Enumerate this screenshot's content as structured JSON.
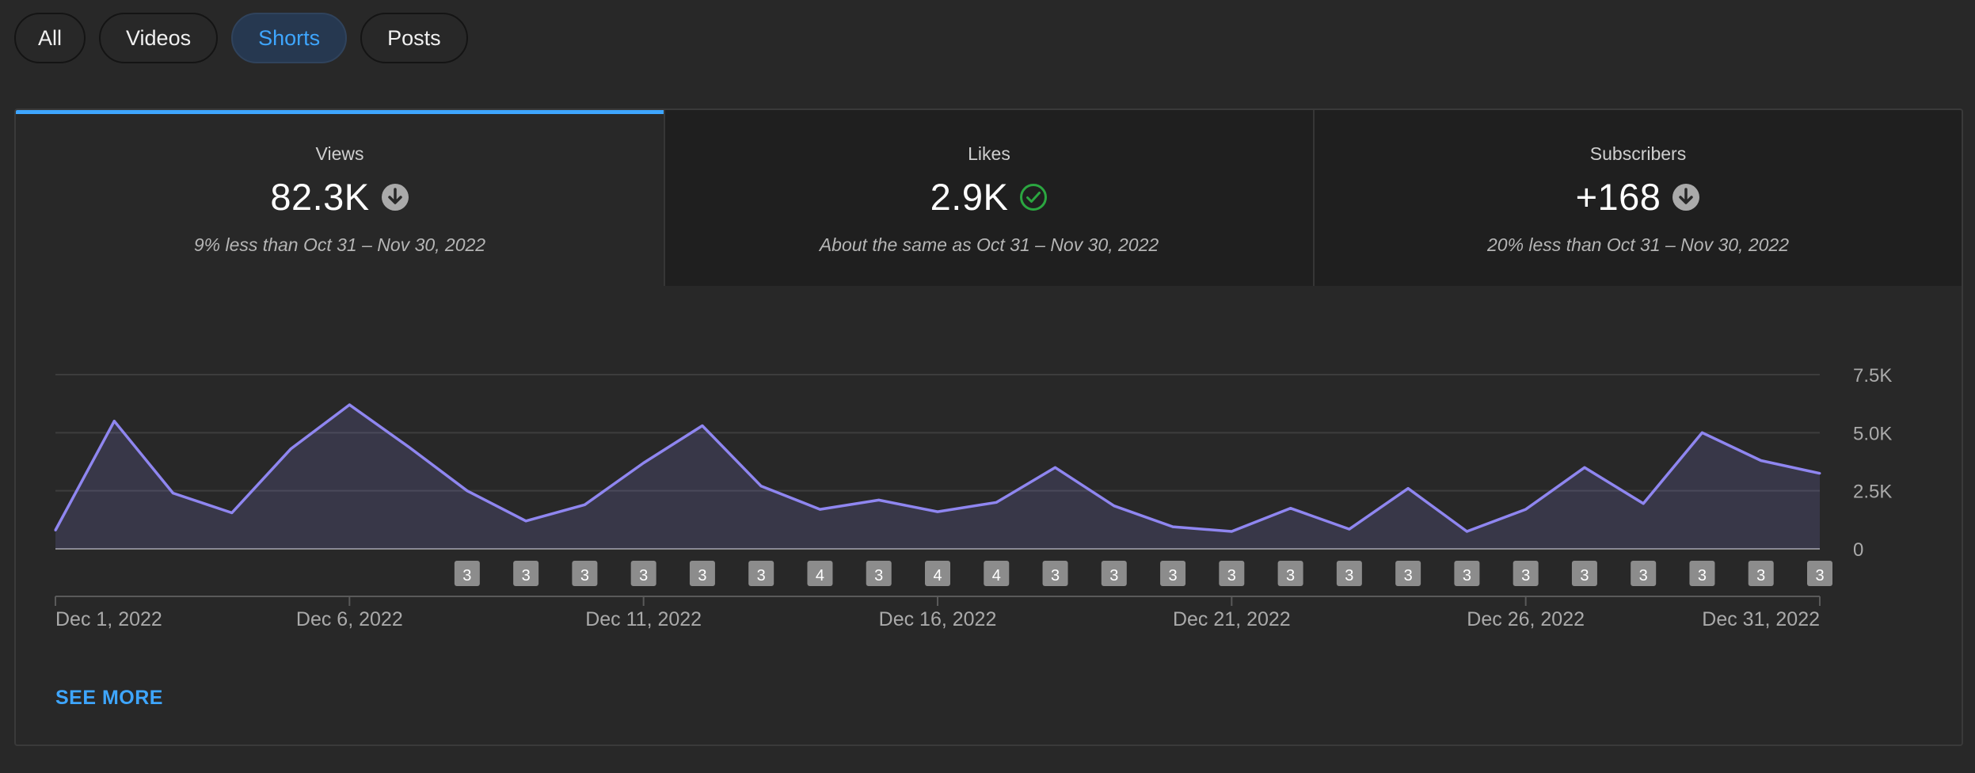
{
  "filters": [
    "All",
    "Videos",
    "Shorts",
    "Posts"
  ],
  "active_filter": "Shorts",
  "metrics": [
    {
      "label": "Views",
      "value": "82.3K",
      "icon": "arrow-down-circle-icon",
      "comparison": "9% less than Oct 31 – Nov 30, 2022"
    },
    {
      "label": "Likes",
      "value": "2.9K",
      "icon": "check-circle-icon",
      "comparison": "About the same as Oct 31 – Nov 30, 2022"
    },
    {
      "label": "Subscribers",
      "value": "+168",
      "icon": "arrow-down-circle-icon",
      "comparison": "20% less than Oct 31 – Nov 30, 2022"
    }
  ],
  "see_more": "SEE MORE",
  "colors": {
    "accent": "#3ea6ff",
    "line": "#8f86f0",
    "ok": "#2ba640"
  },
  "chart_data": {
    "type": "area",
    "y_ticks": [
      "7.5K",
      "5.0K",
      "2.5K",
      "0"
    ],
    "ylim": [
      0,
      7500
    ],
    "x_tick_labels": [
      "Dec 1, 2022",
      "Dec 6, 2022",
      "Dec 11, 2022",
      "Dec 16, 2022",
      "Dec 21, 2022",
      "Dec 26, 2022",
      "Dec 31, 2022"
    ],
    "x": [
      "Dec 1, 2022",
      "Dec 2, 2022",
      "Dec 3, 2022",
      "Dec 4, 2022",
      "Dec 5, 2022",
      "Dec 6, 2022",
      "Dec 7, 2022",
      "Dec 8, 2022",
      "Dec 9, 2022",
      "Dec 10, 2022",
      "Dec 11, 2022",
      "Dec 12, 2022",
      "Dec 13, 2022",
      "Dec 14, 2022",
      "Dec 15, 2022",
      "Dec 16, 2022",
      "Dec 17, 2022",
      "Dec 18, 2022",
      "Dec 19, 2022",
      "Dec 20, 2022",
      "Dec 21, 2022",
      "Dec 22, 2022",
      "Dec 23, 2022",
      "Dec 24, 2022",
      "Dec 25, 2022",
      "Dec 26, 2022",
      "Dec 27, 2022",
      "Dec 28, 2022",
      "Dec 29, 2022",
      "Dec 30, 2022",
      "Dec 31, 2022"
    ],
    "values": [
      800,
      5500,
      2400,
      1550,
      4300,
      6200,
      4400,
      2500,
      1200,
      1900,
      3700,
      5300,
      2700,
      1700,
      2100,
      1600,
      2000,
      3500,
      1850,
      950,
      750,
      1750,
      850,
      2600,
      750,
      1700,
      3500,
      1950,
      5000,
      3800,
      3250
    ],
    "published_markers": [
      {
        "x": "Dec 8, 2022",
        "count": "3"
      },
      {
        "x": "Dec 9, 2022",
        "count": "3"
      },
      {
        "x": "Dec 10, 2022",
        "count": "3"
      },
      {
        "x": "Dec 11, 2022",
        "count": "3"
      },
      {
        "x": "Dec 12, 2022",
        "count": "3"
      },
      {
        "x": "Dec 13, 2022",
        "count": "3"
      },
      {
        "x": "Dec 14, 2022",
        "count": "4"
      },
      {
        "x": "Dec 15, 2022",
        "count": "3"
      },
      {
        "x": "Dec 16, 2022",
        "count": "4"
      },
      {
        "x": "Dec 17, 2022",
        "count": "4"
      },
      {
        "x": "Dec 18, 2022",
        "count": "3"
      },
      {
        "x": "Dec 19, 2022",
        "count": "3"
      },
      {
        "x": "Dec 20, 2022",
        "count": "3"
      },
      {
        "x": "Dec 21, 2022",
        "count": "3"
      },
      {
        "x": "Dec 22, 2022",
        "count": "3"
      },
      {
        "x": "Dec 23, 2022",
        "count": "3"
      },
      {
        "x": "Dec 24, 2022",
        "count": "3"
      },
      {
        "x": "Dec 25, 2022",
        "count": "3"
      },
      {
        "x": "Dec 26, 2022",
        "count": "3"
      },
      {
        "x": "Dec 27, 2022",
        "count": "3"
      },
      {
        "x": "Dec 28, 2022",
        "count": "3"
      },
      {
        "x": "Dec 29, 2022",
        "count": "3"
      },
      {
        "x": "Dec 30, 2022",
        "count": "3"
      },
      {
        "x": "Dec 31, 2022",
        "count": "3"
      }
    ],
    "grid": true,
    "legend": "none"
  }
}
